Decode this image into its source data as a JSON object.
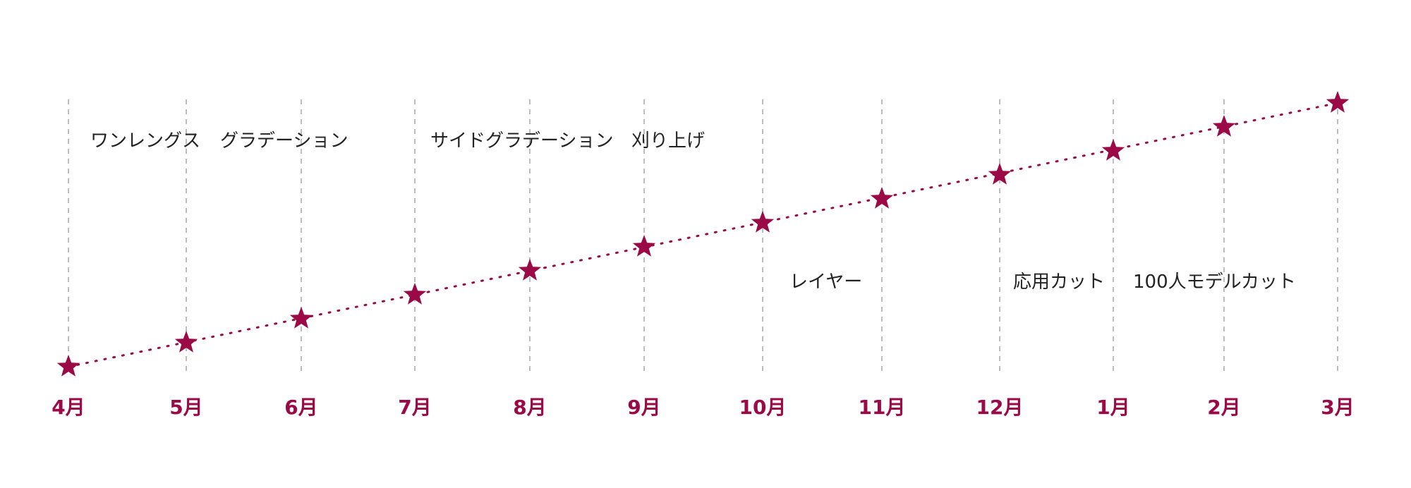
{
  "months": [
    "4月",
    "5月",
    "6月",
    "7月",
    "8月",
    "9月",
    "10月",
    "11月",
    "12月",
    "1月",
    "2月",
    "3月"
  ],
  "topics": [
    {
      "label": "ワンレングス"
    },
    {
      "label": "グラデーション"
    },
    {
      "label": "サイドグラデーション"
    },
    {
      "label": "刈り上げ"
    },
    {
      "label": "レイヤー"
    },
    {
      "label": "応用カット"
    },
    {
      "label": "100人モデルカット"
    }
  ]
}
